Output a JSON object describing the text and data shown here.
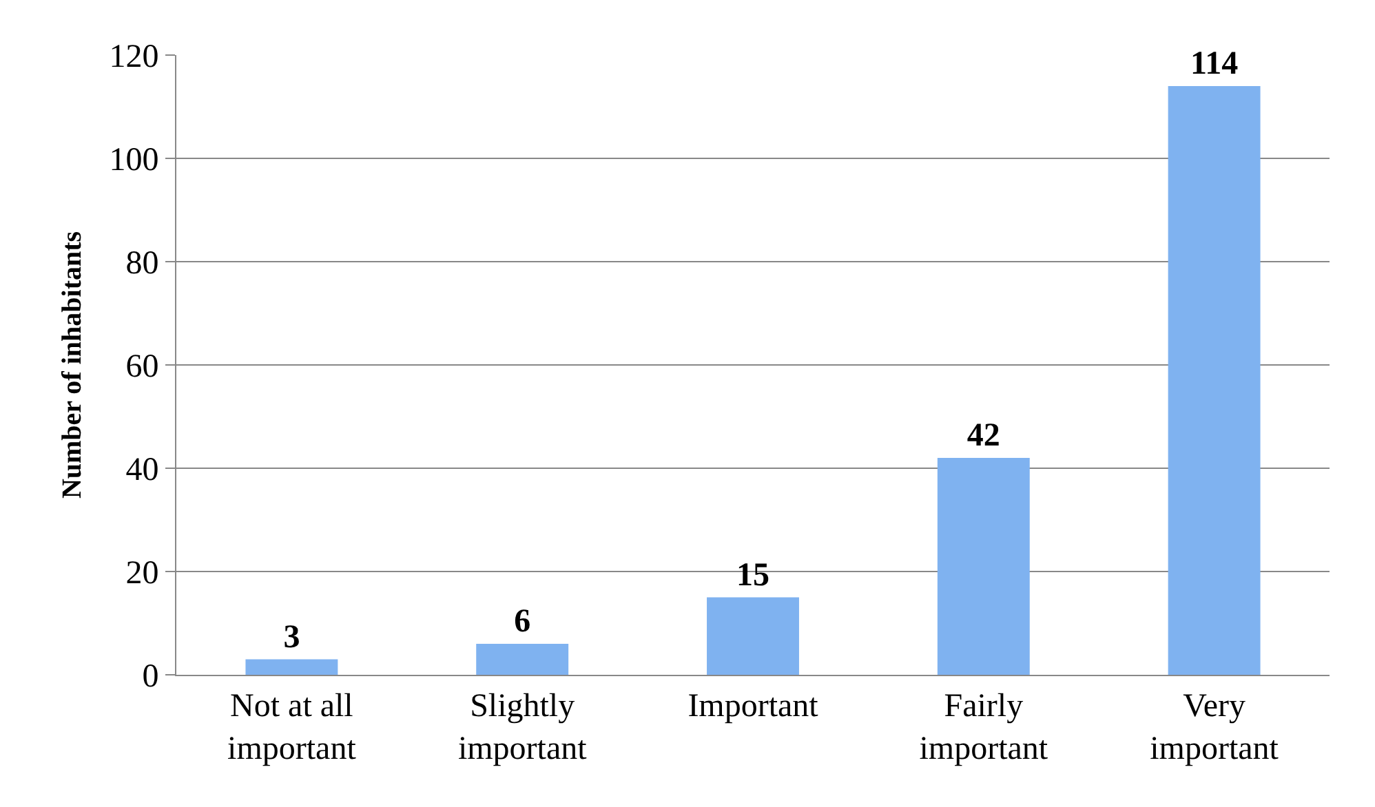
{
  "chart_data": {
    "type": "bar",
    "ylabel": "Number of inhabitants",
    "categories": [
      "Not at all important",
      "Slightly important",
      "Important",
      "Fairly important",
      "Very important"
    ],
    "values": [
      3,
      6,
      15,
      42,
      114
    ],
    "color": "#7fb2f0",
    "ylim": [
      0,
      120
    ],
    "yticks": [
      0,
      20,
      40,
      60,
      80,
      100,
      120
    ],
    "grid": "y",
    "data_labels": true,
    "legend": false
  }
}
